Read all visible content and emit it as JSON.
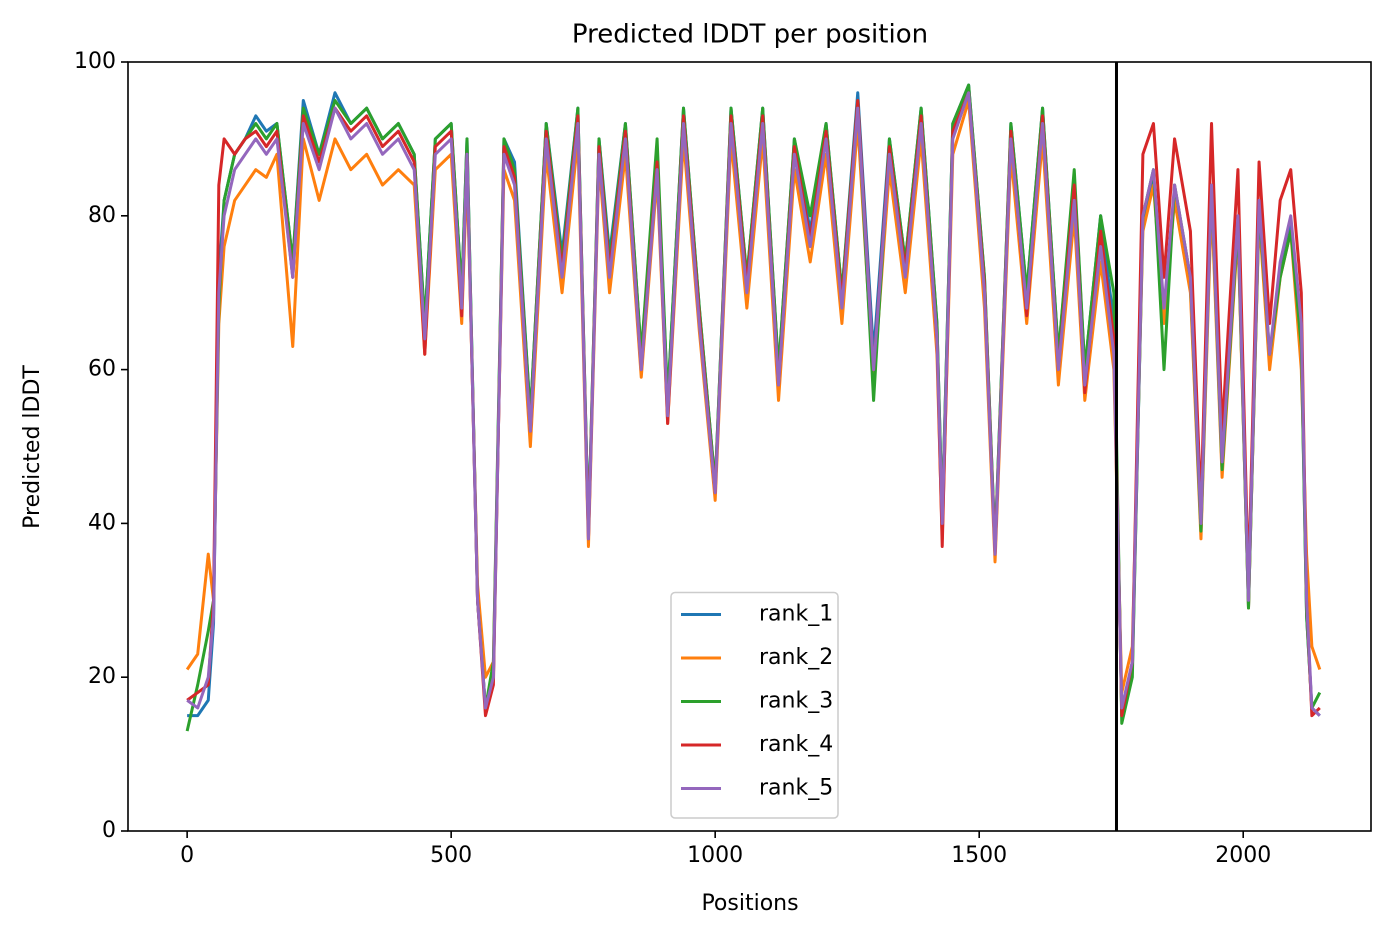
{
  "chart_data": {
    "type": "line",
    "title": "Predicted lDDT per position",
    "xlabel": "Positions",
    "ylabel": "Predicted lDDT",
    "xlim": [
      -112,
      2242
    ],
    "ylim": [
      0,
      100
    ],
    "xticks": [
      0,
      500,
      1000,
      1500,
      2000
    ],
    "yticks": [
      0,
      20,
      40,
      60,
      80,
      100
    ],
    "vline": 1760,
    "legend": "lower center",
    "x": [
      0,
      20,
      40,
      50,
      60,
      70,
      90,
      110,
      130,
      150,
      170,
      200,
      220,
      250,
      280,
      310,
      340,
      370,
      400,
      430,
      450,
      470,
      500,
      520,
      530,
      550,
      565,
      580,
      600,
      620,
      650,
      680,
      710,
      740,
      760,
      780,
      800,
      830,
      860,
      890,
      910,
      940,
      970,
      1000,
      1030,
      1060,
      1090,
      1120,
      1150,
      1180,
      1210,
      1240,
      1270,
      1300,
      1330,
      1360,
      1390,
      1420,
      1430,
      1450,
      1480,
      1510,
      1530,
      1560,
      1590,
      1620,
      1650,
      1680,
      1700,
      1730,
      1755,
      1770,
      1790,
      1810,
      1830,
      1850,
      1870,
      1900,
      1920,
      1940,
      1960,
      1990,
      2010,
      2030,
      2050,
      2070,
      2090,
      2110,
      2120,
      2130,
      2145
    ],
    "series": [
      {
        "name": "rank_1",
        "color": "#1f77b4",
        "values": [
          15,
          15,
          17,
          27,
          72,
          82,
          88,
          90,
          93,
          91,
          92,
          74,
          95,
          88,
          96,
          92,
          94,
          90,
          92,
          88,
          66,
          90,
          92,
          70,
          90,
          30,
          16,
          20,
          90,
          87,
          54,
          92,
          75,
          94,
          39,
          90,
          75,
          92,
          62,
          88,
          56,
          94,
          68,
          45,
          94,
          72,
          94,
          60,
          90,
          78,
          92,
          70,
          96,
          62,
          90,
          74,
          94,
          66,
          41,
          92,
          97,
          72,
          37,
          92,
          70,
          94,
          62,
          85,
          60,
          80,
          66,
          15,
          21,
          79,
          85,
          67,
          83,
          71,
          39,
          83,
          47,
          79,
          29,
          81,
          61,
          73,
          79,
          64,
          28,
          16,
          15
        ]
      },
      {
        "name": "rank_2",
        "color": "#ff7f0e",
        "values": [
          21,
          23,
          36,
          30,
          66,
          76,
          82,
          84,
          86,
          85,
          88,
          63,
          90,
          82,
          90,
          86,
          88,
          84,
          86,
          84,
          62,
          86,
          88,
          66,
          86,
          32,
          20,
          22,
          86,
          82,
          50,
          88,
          70,
          90,
          37,
          87,
          70,
          88,
          59,
          85,
          53,
          90,
          65,
          43,
          90,
          68,
          90,
          56,
          86,
          74,
          88,
          66,
          92,
          58,
          86,
          70,
          90,
          62,
          38,
          88,
          95,
          68,
          35,
          88,
          66,
          90,
          58,
          80,
          56,
          74,
          60,
          18,
          24,
          78,
          84,
          66,
          82,
          70,
          38,
          82,
          46,
          78,
          29,
          80,
          60,
          72,
          78,
          60,
          36,
          24,
          21
        ]
      },
      {
        "name": "rank_3",
        "color": "#2ca02c",
        "values": [
          13,
          19,
          26,
          30,
          68,
          82,
          88,
          90,
          92,
          90,
          92,
          74,
          94,
          88,
          95,
          92,
          94,
          90,
          92,
          88,
          66,
          90,
          92,
          70,
          90,
          30,
          16,
          22,
          90,
          86,
          54,
          92,
          74,
          94,
          39,
          90,
          74,
          92,
          62,
          90,
          56,
          94,
          68,
          45,
          94,
          72,
          94,
          60,
          90,
          80,
          92,
          70,
          95,
          56,
          90,
          74,
          94,
          66,
          41,
          92,
          97,
          72,
          37,
          92,
          70,
          94,
          62,
          86,
          60,
          80,
          70,
          14,
          20,
          80,
          86,
          60,
          84,
          72,
          39,
          84,
          47,
          79,
          29,
          81,
          62,
          72,
          78,
          63,
          28,
          16,
          18
        ]
      },
      {
        "name": "rank_4",
        "color": "#d62728",
        "values": [
          17,
          18,
          19,
          30,
          84,
          90,
          88,
          90,
          91,
          89,
          91,
          72,
          93,
          87,
          94,
          91,
          93,
          89,
          91,
          87,
          62,
          89,
          91,
          67,
          88,
          30,
          15,
          19,
          89,
          85,
          52,
          91,
          73,
          93,
          38,
          89,
          73,
          91,
          60,
          87,
          53,
          93,
          67,
          44,
          93,
          71,
          93,
          58,
          89,
          77,
          91,
          69,
          95,
          60,
          89,
          73,
          93,
          64,
          37,
          91,
          96,
          71,
          36,
          91,
          67,
          93,
          60,
          84,
          57,
          78,
          64,
          15,
          22,
          88,
          92,
          72,
          90,
          78,
          42,
          92,
          52,
          86,
          32,
          87,
          66,
          82,
          86,
          70,
          30,
          15,
          16
        ]
      },
      {
        "name": "rank_5",
        "color": "#9467bd",
        "values": [
          17,
          16,
          20,
          28,
          70,
          80,
          86,
          88,
          90,
          88,
          90,
          72,
          92,
          86,
          94,
          90,
          92,
          88,
          90,
          86,
          64,
          88,
          90,
          68,
          88,
          30,
          16,
          20,
          88,
          84,
          52,
          90,
          72,
          92,
          38,
          88,
          72,
          90,
          60,
          86,
          54,
          92,
          66,
          44,
          92,
          70,
          92,
          58,
          88,
          76,
          90,
          68,
          94,
          60,
          88,
          72,
          92,
          64,
          40,
          90,
          96,
          70,
          36,
          90,
          68,
          92,
          60,
          82,
          58,
          76,
          62,
          16,
          22,
          80,
          86,
          68,
          84,
          72,
          40,
          84,
          48,
          80,
          30,
          82,
          62,
          74,
          80,
          66,
          30,
          16,
          15
        ]
      }
    ]
  }
}
